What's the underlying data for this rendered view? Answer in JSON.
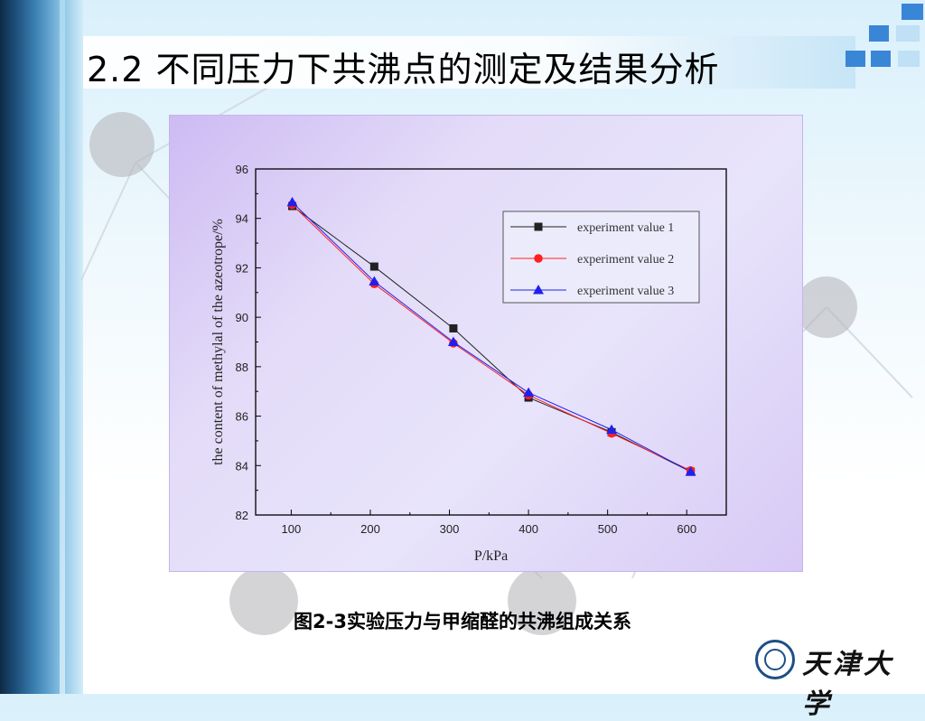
{
  "slide": {
    "title": "2.2 不同压力下共沸点的测定及结果分析",
    "caption": "图2-3实验压力与甲缩醛的共沸组成关系",
    "logo_text": "天津大学"
  },
  "colors": {
    "series1": "#222222",
    "series2": "#ff2020",
    "series3": "#2020ee",
    "frame_bg": "#e3dbf8",
    "deco_blue": "#3a86d6"
  },
  "chart_data": {
    "type": "line",
    "xlabel": "P/kPa",
    "ylabel": "the content of methylal of the azeotrope/%",
    "xlim": [
      55,
      650
    ],
    "ylim": [
      82,
      96
    ],
    "xticks": [
      100,
      200,
      300,
      400,
      500,
      600
    ],
    "yticks": [
      82,
      84,
      86,
      88,
      90,
      92,
      94,
      96
    ],
    "legend_position": "top-right",
    "series": [
      {
        "name": "experiment value 1",
        "marker": "square",
        "x": [
          101.3,
          205,
          305,
          400,
          505,
          605
        ],
        "y": [
          94.5,
          92.05,
          89.55,
          86.75,
          85.35,
          83.75
        ]
      },
      {
        "name": "experiment value 2",
        "marker": "circle",
        "x": [
          101.3,
          205,
          305,
          400,
          505,
          605
        ],
        "y": [
          94.55,
          91.35,
          88.95,
          86.85,
          85.3,
          83.8
        ]
      },
      {
        "name": "experiment value 3",
        "marker": "triangle",
        "x": [
          101.3,
          205,
          305,
          400,
          505,
          605
        ],
        "y": [
          94.65,
          91.45,
          89.0,
          86.95,
          85.45,
          83.75
        ]
      }
    ]
  }
}
